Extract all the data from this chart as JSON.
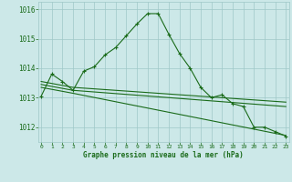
{
  "line1": {
    "x": [
      0,
      1,
      2,
      3,
      4,
      5,
      6,
      7,
      8,
      9,
      10,
      11,
      12,
      13,
      14,
      15,
      16,
      17,
      18,
      19,
      20,
      21,
      22,
      23
    ],
    "y": [
      1013.05,
      1013.8,
      1013.55,
      1013.25,
      1013.9,
      1014.05,
      1014.45,
      1014.7,
      1015.1,
      1015.5,
      1015.85,
      1015.85,
      1015.15,
      1014.5,
      1014.0,
      1013.35,
      1013.0,
      1013.1,
      1012.8,
      1012.7,
      1012.0,
      1012.0,
      1011.85,
      1011.7
    ]
  },
  "line2": {
    "x": [
      0,
      3,
      23
    ],
    "y": [
      1013.55,
      1013.35,
      1012.85
    ]
  },
  "line3": {
    "x": [
      0,
      3,
      23
    ],
    "y": [
      1013.45,
      1013.25,
      1012.7
    ]
  },
  "line4": {
    "x": [
      0,
      3,
      23
    ],
    "y": [
      1013.35,
      1013.15,
      1011.72
    ]
  },
  "line_color": "#1a6b1a",
  "bg_color": "#cce8e8",
  "grid_color": "#9fc8c8",
  "xlabel": "Graphe pression niveau de la mer (hPa)",
  "xlabel_color": "#1a6b1a",
  "tick_color": "#1a6b1a",
  "ylim": [
    1011.5,
    1016.25
  ],
  "yticks": [
    1012,
    1013,
    1014,
    1015,
    1016
  ],
  "xticks": [
    0,
    1,
    2,
    3,
    4,
    5,
    6,
    7,
    8,
    9,
    10,
    11,
    12,
    13,
    14,
    15,
    16,
    17,
    18,
    19,
    20,
    21,
    22,
    23
  ],
  "marker": "+",
  "marker_size": 3.5,
  "line_width": 0.8
}
